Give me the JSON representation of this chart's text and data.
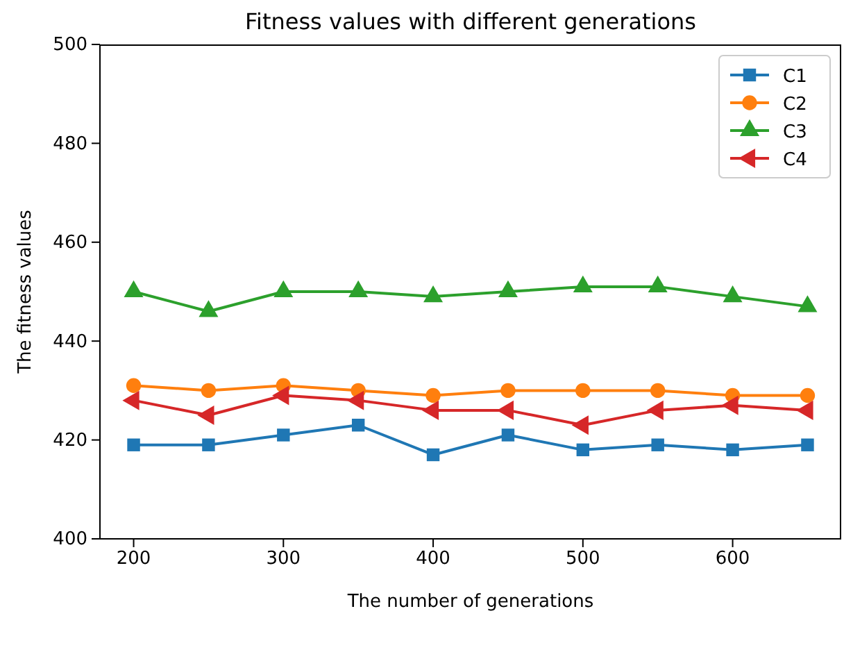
{
  "chart_data": {
    "type": "line",
    "title": "Fitness values with different generations",
    "xlabel": "The number of generations",
    "ylabel": "The fitness values",
    "x": [
      200,
      250,
      300,
      350,
      400,
      450,
      500,
      550,
      600,
      650
    ],
    "xlim": [
      177.5,
      672.5
    ],
    "xticks": [
      200,
      300,
      400,
      500,
      600
    ],
    "ylim": [
      400,
      500
    ],
    "yticks": [
      400,
      420,
      440,
      460,
      480,
      500
    ],
    "legend": "top right",
    "grid": false,
    "line_style": "solid",
    "series": [
      {
        "name": "C1",
        "color": "#1f77b4",
        "marker": "square",
        "values": [
          419,
          419,
          421,
          423,
          417,
          421,
          418,
          419,
          418,
          419
        ]
      },
      {
        "name": "C2",
        "color": "#ff7f0e",
        "marker": "circle",
        "values": [
          431,
          430,
          431,
          430,
          429,
          430,
          430,
          430,
          429,
          429
        ]
      },
      {
        "name": "C3",
        "color": "#2ca02c",
        "marker": "triangle",
        "values": [
          450,
          446,
          450,
          450,
          449,
          450,
          451,
          451,
          449,
          447
        ]
      },
      {
        "name": "C4",
        "color": "#d62728",
        "marker": "triangle-left",
        "values": [
          428,
          425,
          429,
          428,
          426,
          426,
          423,
          426,
          427,
          426
        ]
      }
    ]
  }
}
